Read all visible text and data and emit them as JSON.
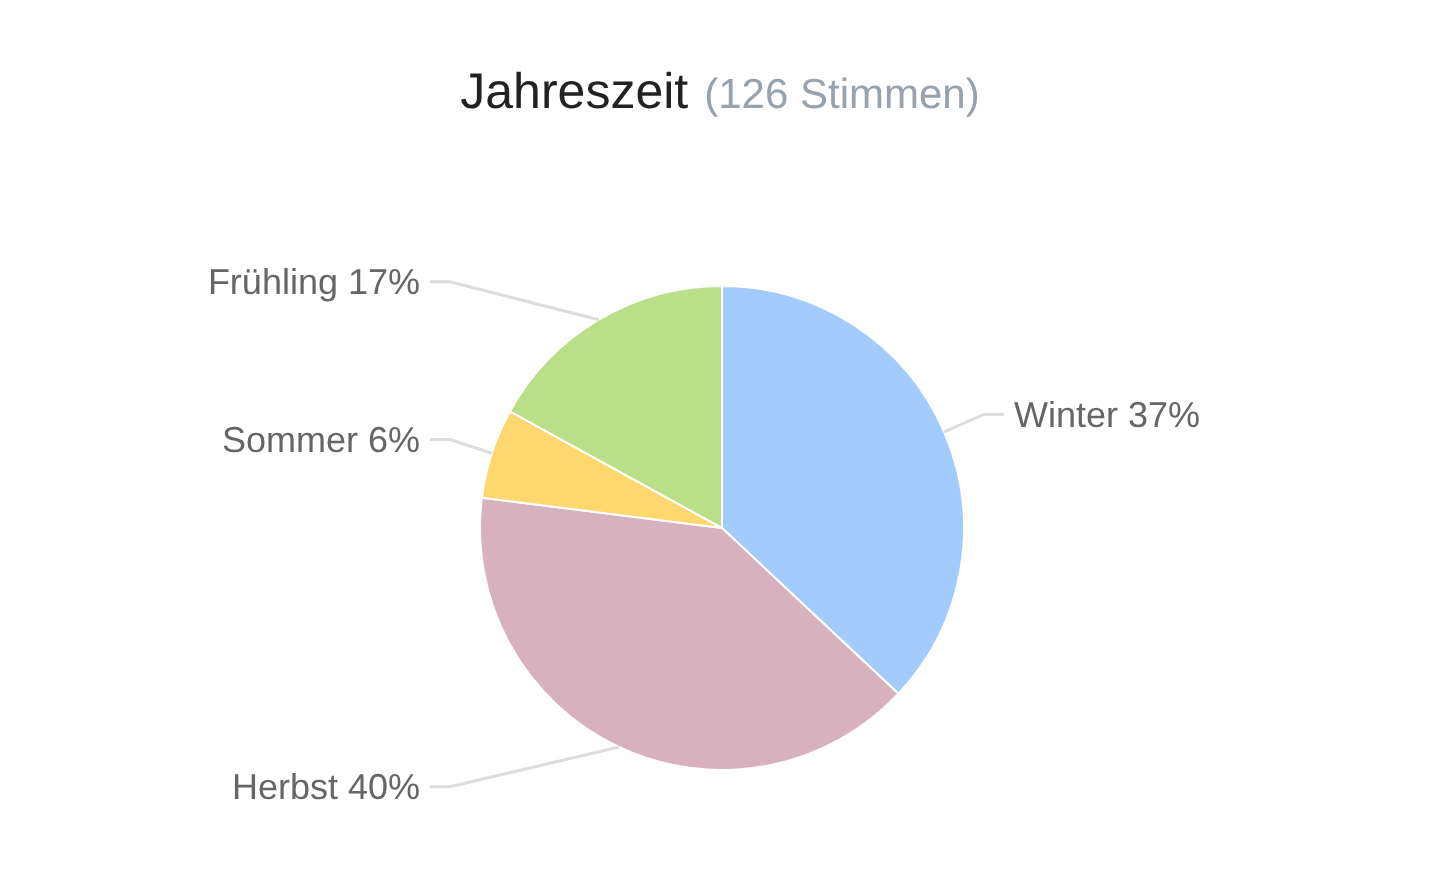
{
  "chart_data": {
    "type": "pie",
    "title": "Jahreszeit",
    "subtitle": "(126 Stimmen)",
    "categories": [
      "Winter",
      "Herbst",
      "Sommer",
      "Frühling"
    ],
    "values": [
      37,
      40,
      6,
      17
    ],
    "colors": [
      "#a3cbfb",
      "#d8b1bf",
      "#fed76f",
      "#badf89"
    ],
    "value_labels": [
      "37%",
      "40%",
      "6%",
      "17%"
    ],
    "legend": false
  }
}
